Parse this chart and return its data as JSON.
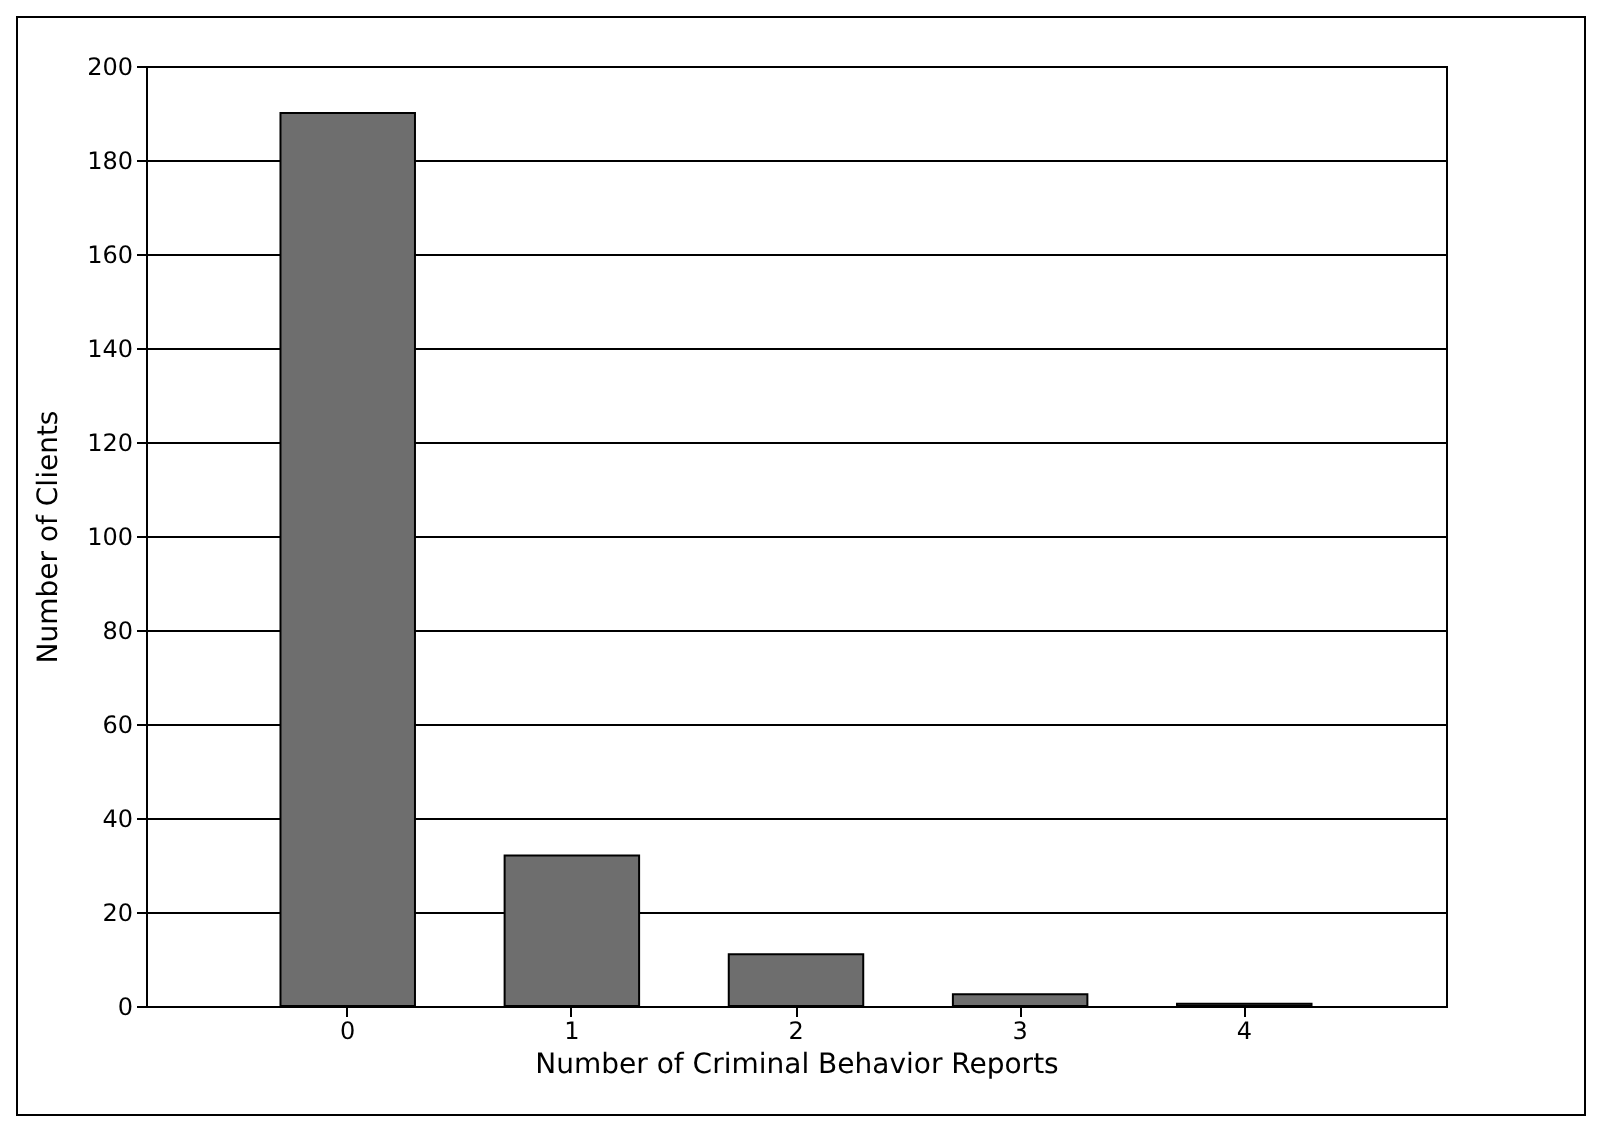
{
  "chart_data": {
    "type": "bar",
    "xlabel": "Number of Criminal Behavior Reports",
    "ylabel": "Number of Clients",
    "categories": [
      "0",
      "1",
      "2",
      "3",
      "4"
    ],
    "values": [
      190,
      32,
      11,
      2.5,
      0.5
    ],
    "color": "#6e6e6e",
    "ylim": [
      0,
      200
    ],
    "yticks": [
      0,
      20,
      40,
      60,
      80,
      100,
      120,
      140,
      160,
      180,
      200
    ],
    "grid": "y"
  }
}
